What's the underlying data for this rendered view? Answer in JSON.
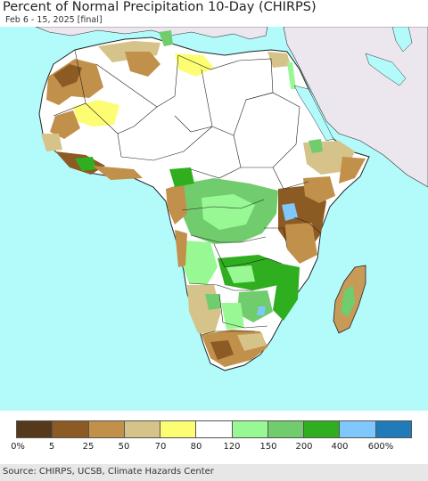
{
  "title": "Percent of Normal Precipitation 10-Day (CHIRPS)",
  "subtitle": "Feb 6 - 15, 2025 [final]",
  "legend": {
    "colors": [
      "#55391a",
      "#8c5a23",
      "#c1904a",
      "#d5c38a",
      "#fdfd73",
      "#ffffff",
      "#98f994",
      "#71cc6e",
      "#2fae20",
      "#7fc8fc",
      "#1f7cb8"
    ],
    "labels": [
      "0%",
      "5",
      "25",
      "50",
      "70",
      "80",
      "120",
      "150",
      "200",
      "400",
      "600%"
    ]
  },
  "source": "Source: CHIRPS, UCSB, Climate Hazards Center",
  "colors": {
    "ocean": "#b3fbfb",
    "non_africa_land": "#ece6ee",
    "normal": "#ffffff"
  }
}
